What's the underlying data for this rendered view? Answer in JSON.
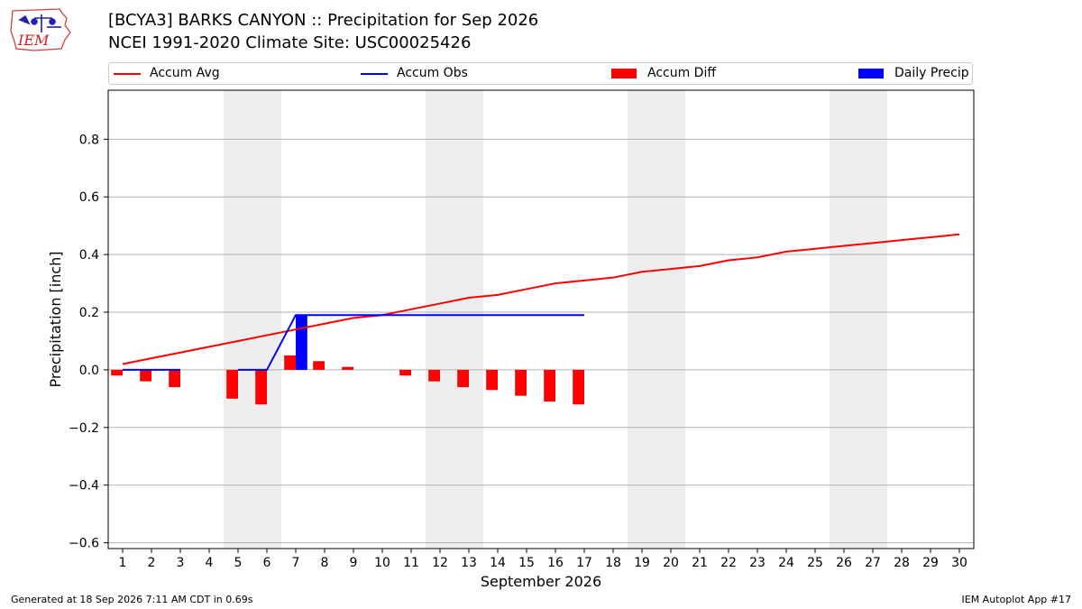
{
  "header": {
    "title_line1": "[BCYA3] BARKS CANYON :: Precipitation for Sep 2026",
    "title_line2": "NCEI 1991-2020 Climate Site: USC00025426",
    "logo_text": "IEM"
  },
  "footer": {
    "left": "Generated at 18 Sep 2026 7:11 AM CDT in 0.69s",
    "right": "IEM Autoplot App #17"
  },
  "legend": {
    "accum_avg": "Accum Avg",
    "accum_obs": "Accum Obs",
    "accum_diff": "Accum Diff",
    "daily_precip": "Daily Precip"
  },
  "colors": {
    "accum_avg": "#ff0000",
    "accum_obs": "#0000ff",
    "accum_diff": "#ff0000",
    "daily_precip": "#0000ff",
    "weekend_band": "#eeeeee",
    "grid": "#b0b0b0"
  },
  "chart_data": {
    "type": "bar",
    "xlabel": "September 2026",
    "ylabel": "Precipitation [inch]",
    "xlim": [
      0.5,
      30.5
    ],
    "ylim": [
      -0.62,
      0.97
    ],
    "yticks": [
      -0.6,
      -0.4,
      -0.2,
      0.0,
      0.2,
      0.4,
      0.6,
      0.8
    ],
    "ytick_labels": [
      "−0.6",
      "−0.4",
      "−0.2",
      "0.0",
      "0.2",
      "0.4",
      "0.6",
      "0.8"
    ],
    "x_ticks": [
      1,
      2,
      3,
      4,
      5,
      6,
      7,
      8,
      9,
      10,
      11,
      12,
      13,
      14,
      15,
      16,
      17,
      18,
      19,
      20,
      21,
      22,
      23,
      24,
      25,
      26,
      27,
      28,
      29,
      30
    ],
    "grid": "horizontal",
    "legend_position": "top",
    "weekend_bands": [
      [
        5,
        6
      ],
      [
        12,
        13
      ],
      [
        19,
        20
      ],
      [
        26,
        27
      ]
    ],
    "accum_avg": {
      "days": [
        1,
        2,
        3,
        4,
        5,
        6,
        7,
        8,
        9,
        10,
        11,
        12,
        13,
        14,
        15,
        16,
        17,
        18,
        19,
        20,
        21,
        22,
        23,
        24,
        25,
        26,
        27,
        28,
        29,
        30
      ],
      "values": [
        0.02,
        0.04,
        0.06,
        0.08,
        0.1,
        0.12,
        0.14,
        0.16,
        0.18,
        0.19,
        0.21,
        0.23,
        0.25,
        0.26,
        0.28,
        0.3,
        0.31,
        0.32,
        0.34,
        0.35,
        0.36,
        0.38,
        0.39,
        0.41,
        0.42,
        0.43,
        0.44,
        0.45,
        0.46,
        0.47
      ]
    },
    "accum_obs": {
      "segments": [
        {
          "days": [
            1,
            2,
            3
          ],
          "values": [
            0.0,
            0.0,
            0.0
          ]
        },
        {
          "days": [
            5,
            6,
            7,
            8,
            9,
            10,
            11,
            12,
            13,
            14,
            15,
            16,
            17
          ],
          "values": [
            0.0,
            0.0,
            0.19,
            0.19,
            0.19,
            0.19,
            0.19,
            0.19,
            0.19,
            0.19,
            0.19,
            0.19,
            0.19
          ]
        }
      ]
    },
    "accum_diff": {
      "days": [
        1,
        2,
        3,
        5,
        6,
        7,
        8,
        9,
        11,
        12,
        13,
        14,
        15,
        16,
        17
      ],
      "values": [
        -0.02,
        -0.04,
        -0.06,
        -0.1,
        -0.12,
        0.05,
        0.03,
        0.01,
        -0.02,
        -0.04,
        -0.06,
        -0.07,
        -0.09,
        -0.11,
        -0.12
      ]
    },
    "daily_precip": {
      "days": [
        7
      ],
      "values": [
        0.19
      ]
    }
  }
}
